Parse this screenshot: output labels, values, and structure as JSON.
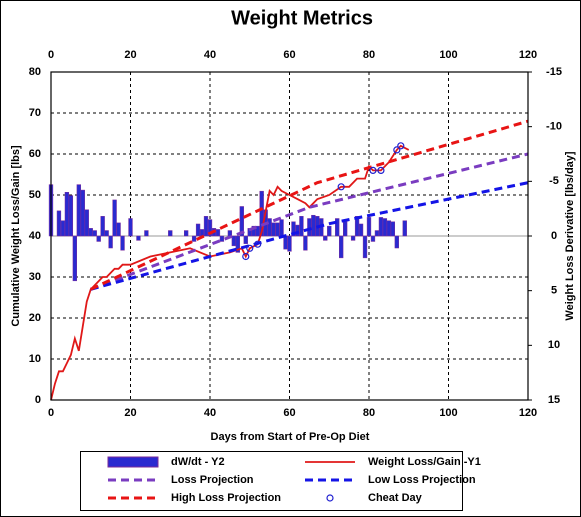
{
  "chart_data": {
    "type": "combo",
    "title": "Weight Metrics",
    "x_label": "Days from Start of Pre-Op Diet",
    "y_label": "Cumulative Weight Loss/Gain [lbs]",
    "y2_label": "Weight Loss Derivative [lbs/day]",
    "xlim": [
      0,
      120
    ],
    "xticks": [
      0,
      20,
      40,
      60,
      80,
      100,
      120
    ],
    "ylim": [
      0,
      80
    ],
    "yticks": [
      0,
      10,
      20,
      30,
      40,
      50,
      60,
      70,
      80
    ],
    "y2lim": [
      15,
      -15
    ],
    "y2ticks": [
      -15,
      -10,
      -5,
      0,
      5,
      10,
      15
    ],
    "grid": true,
    "series": [
      {
        "name": "dW/dt - Y2",
        "type": "bar",
        "axis": "y2",
        "color": "#2a2ad0",
        "x": [
          0,
          2,
          3,
          4,
          5,
          6,
          7,
          8,
          9,
          10,
          11,
          12,
          13,
          14,
          15,
          16,
          17,
          18,
          20,
          22,
          24,
          30,
          34,
          36,
          37,
          38,
          39,
          40,
          41,
          42,
          43,
          45,
          46,
          47,
          48,
          49,
          50,
          51,
          52,
          53,
          54,
          55,
          56,
          57,
          58,
          59,
          60,
          61,
          62,
          63,
          64,
          65,
          66,
          67,
          68,
          69,
          70,
          72,
          73,
          74,
          76,
          77,
          78,
          79,
          80,
          81,
          82,
          83,
          84,
          85,
          86,
          87,
          89
        ],
        "values": [
          -4.7,
          -2.3,
          -1.4,
          -4.0,
          -3.7,
          4.1,
          -4.7,
          -4.2,
          -2.4,
          -0.7,
          -0.5,
          0.5,
          -1.8,
          -0.5,
          1.1,
          -3.3,
          -1.2,
          1.3,
          -1.6,
          0.4,
          -0.5,
          -0.5,
          -0.5,
          0.5,
          -1.1,
          -0.6,
          -1.8,
          -1.5,
          -0.7,
          -0.6,
          0.5,
          -0.5,
          0.9,
          1.5,
          -2.7,
          0.7,
          -0.7,
          -0.9,
          -0.9,
          -4.1,
          -2.4,
          -1.6,
          -1.2,
          -1.2,
          -1.5,
          1.2,
          1.4,
          -1.3,
          -1.0,
          -1.8,
          1.3,
          -1.6,
          -1.9,
          -1.8,
          -1.6,
          0.4,
          -0.9,
          -1.6,
          2.0,
          -1.3,
          0.4,
          -1.8,
          -1.1,
          2.0,
          -1.7,
          0.5,
          -0.5,
          -1.7,
          -1.6,
          -1.4,
          -1.3,
          1.1,
          -1.4
        ]
      },
      {
        "name": "Weight Loss/Gain -Y1",
        "type": "line",
        "color": "#e01818",
        "x": [
          0,
          1,
          2,
          3,
          4,
          5,
          6,
          7,
          8,
          9,
          10,
          11,
          12,
          13,
          14,
          15,
          16,
          17,
          18,
          19,
          20,
          25,
          30,
          35,
          40,
          45,
          48,
          49,
          50,
          52,
          53,
          54,
          55,
          56,
          57,
          58,
          60,
          62,
          64,
          65,
          67,
          70,
          73,
          75,
          77,
          79,
          80,
          81,
          83,
          85,
          87,
          88,
          90
        ],
        "values": [
          0,
          4,
          7,
          7,
          9,
          11,
          15,
          12,
          18,
          24,
          27,
          28,
          29,
          30,
          30,
          31,
          32,
          32,
          33,
          33,
          33,
          35,
          36,
          37,
          35,
          36,
          37,
          35,
          37,
          38,
          41,
          46,
          51,
          50,
          52,
          51,
          50,
          49,
          48,
          47,
          49,
          50,
          52,
          52,
          54,
          54,
          57,
          56,
          56,
          58,
          61,
          62,
          61
        ]
      },
      {
        "name": "Loss Projection",
        "type": "line",
        "dashed": true,
        "color": "#7a3cc0",
        "x": [
          10,
          65,
          120
        ],
        "values": [
          27,
          47,
          60
        ]
      },
      {
        "name": "Low Loss Projection",
        "type": "line",
        "dashed": true,
        "color": "#1414e6",
        "x": [
          10,
          70,
          120
        ],
        "values": [
          27,
          43,
          53
        ]
      },
      {
        "name": "High Loss Projection",
        "type": "line",
        "dashed": true,
        "color": "#e81414",
        "x": [
          10,
          67,
          120
        ],
        "values": [
          27,
          53,
          68
        ]
      },
      {
        "name": "Cheat Day",
        "type": "scatter",
        "color": "#2020d0",
        "x": [
          49,
          50,
          52,
          73,
          81,
          83,
          87,
          88
        ],
        "values": [
          35,
          37,
          38,
          52,
          56,
          56,
          61,
          62
        ]
      }
    ]
  }
}
